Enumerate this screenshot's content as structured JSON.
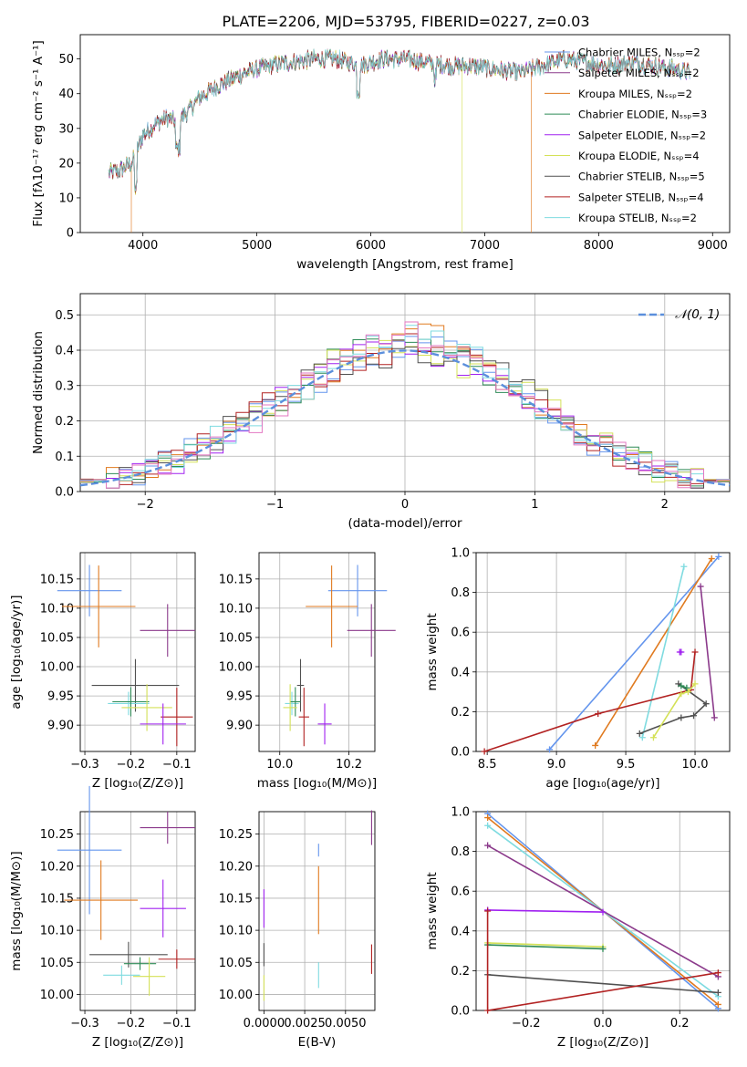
{
  "figure": {
    "title": "PLATE=2206, MJD=53795, FIBERID=0227, z=0.03"
  },
  "colors": {
    "Chabrier MILES": "#6495ed",
    "Salpeter MILES": "#8b3a8b",
    "Kroupa MILES": "#e07a1f",
    "Chabrier ELODIE": "#2e8b57",
    "Salpeter ELODIE": "#a020f0",
    "Kroupa ELODIE": "#d4e157",
    "Chabrier STELIB": "#505050",
    "Salpeter STELIB": "#b22222",
    "Kroupa STELIB": "#7fdbe0",
    "normal": "#5b8fdc",
    "pink": "#e377c2",
    "grid": "#b0b0b0"
  },
  "chart_data": [
    {
      "id": "spectrum",
      "type": "line",
      "title": "PLATE=2206, MJD=53795, FIBERID=0227, z=0.03",
      "xlabel": "wavelength [Angstrom, rest frame]",
      "ylabel": "Flux [fλ10⁻¹⁷ erg cm⁻² s⁻¹ A⁻¹]",
      "xlim": [
        3450,
        9150
      ],
      "ylim": [
        0,
        57
      ],
      "xticks": [
        4000,
        5000,
        6000,
        7000,
        8000,
        9000
      ],
      "yticks": [
        0,
        10,
        20,
        30,
        40,
        50
      ],
      "grid": false,
      "legend_position": "top-right",
      "legend": [
        "Chabrier MILES, Nₛₛₚ=2",
        "Salpeter MILES, Nₛₛₚ=2",
        "Kroupa MILES, Nₛₛₚ=2",
        "Chabrier ELODIE, Nₛₛₚ=3",
        "Salpeter ELODIE, Nₛₛₚ=2",
        "Kroupa ELODIE, Nₛₛₚ=4",
        "Chabrier STELIB, Nₛₛₚ=5",
        "Salpeter STELIB, Nₛₛₚ=4",
        "Kroupa STELIB, Nₛₛₚ=2"
      ],
      "continuum": {
        "x": [
          3700,
          3800,
          3900,
          4000,
          4100,
          4200,
          4300,
          4400,
          4500,
          4700,
          4900,
          5100,
          5300,
          5500,
          5700,
          5900,
          6100,
          6300,
          6500,
          6700,
          6900,
          7100,
          7300,
          7500,
          7700,
          7900,
          8100,
          8300,
          8500,
          8700,
          8800
        ],
        "y": [
          17,
          18,
          20,
          28,
          31,
          33,
          32,
          35,
          39,
          43,
          46,
          48,
          49,
          50,
          50,
          48,
          50,
          50,
          49,
          48,
          48,
          47,
          46,
          48,
          50,
          49,
          48,
          49,
          48,
          47,
          46
        ]
      },
      "drops": [
        {
          "x": 3900,
          "model": "Kroupa MILES"
        },
        {
          "x": 6800,
          "model": "Kroupa ELODIE"
        },
        {
          "x": 7410,
          "model": "Kroupa MILES"
        }
      ]
    },
    {
      "id": "residuals",
      "type": "line",
      "xlabel": "(data-model)/error",
      "ylabel": "Normed distribution",
      "xlim": [
        -2.5,
        2.5
      ],
      "ylim": [
        0,
        0.56
      ],
      "xticks": [
        -2,
        -1,
        0,
        1,
        2
      ],
      "yticks": [
        0.0,
        0.1,
        0.2,
        0.3,
        0.4,
        0.5
      ],
      "grid": true,
      "legend_position": "top-right",
      "legend": [
        "𝒩(0, 1)"
      ],
      "bin_width": 0.1
    },
    {
      "id": "age-vs-Z",
      "type": "scatter",
      "xlabel": "Z [log₁₀(Z/Z⊙)]",
      "ylabel": "age  [log₁₀(age/yr)]",
      "xlim": [
        -0.31,
        -0.06
      ],
      "ylim": [
        9.855,
        10.195
      ],
      "xticks": [
        -0.3,
        -0.2,
        -0.1
      ],
      "yticks": [
        9.9,
        9.95,
        10.0,
        10.05,
        10.1,
        10.15
      ],
      "grid": true,
      "points": [
        {
          "model": "Chabrier MILES",
          "x": -0.29,
          "y": 10.13,
          "xerr": 0.07,
          "yerr": 0.044
        },
        {
          "model": "Kroupa MILES",
          "x": -0.27,
          "y": 10.103,
          "xerr": 0.08,
          "yerr": 0.07
        },
        {
          "model": "Salpeter MILES",
          "x": -0.12,
          "y": 10.062,
          "xerr": 0.06,
          "yerr": 0.045
        },
        {
          "model": "Chabrier STELIB",
          "x": -0.19,
          "y": 9.968,
          "xerr": 0.095,
          "yerr": 0.045
        },
        {
          "model": "Kroupa STELIB",
          "x": -0.205,
          "y": 9.937,
          "xerr": 0.045,
          "yerr": 0.02
        },
        {
          "model": "Chabrier ELODIE",
          "x": -0.2,
          "y": 9.94,
          "xerr": 0.04,
          "yerr": 0.025
        },
        {
          "model": "Kroupa ELODIE",
          "x": -0.165,
          "y": 9.93,
          "xerr": 0.055,
          "yerr": 0.04
        },
        {
          "model": "Salpeter STELIB",
          "x": -0.1,
          "y": 9.914,
          "xerr": 0.035,
          "yerr": 0.05
        },
        {
          "model": "Salpeter ELODIE",
          "x": -0.13,
          "y": 9.902,
          "xerr": 0.05,
          "yerr": 0.035
        }
      ]
    },
    {
      "id": "age-vs-mass",
      "type": "scatter",
      "xlabel": "mass [log₁₀(M/M⊙)]",
      "ylabel": "",
      "xlim": [
        9.94,
        10.275
      ],
      "ylim": [
        9.855,
        10.195
      ],
      "xticks": [
        10.0,
        10.2
      ],
      "yticks": [
        9.9,
        9.95,
        10.0,
        10.05,
        10.1,
        10.15
      ],
      "grid": true,
      "points": [
        {
          "model": "Chabrier MILES",
          "x": 10.225,
          "y": 10.13,
          "xerr": 0.085,
          "yerr": 0.044
        },
        {
          "model": "Kroupa MILES",
          "x": 10.15,
          "y": 10.103,
          "xerr": 0.075,
          "yerr": 0.07
        },
        {
          "model": "Salpeter MILES",
          "x": 10.265,
          "y": 10.062,
          "xerr": 0.07,
          "yerr": 0.045
        },
        {
          "model": "Chabrier STELIB",
          "x": 10.06,
          "y": 9.968,
          "xerr": 0.01,
          "yerr": 0.045
        },
        {
          "model": "Kroupa STELIB",
          "x": 10.035,
          "y": 9.937,
          "xerr": 0.02,
          "yerr": 0.02
        },
        {
          "model": "Chabrier ELODIE",
          "x": 10.045,
          "y": 9.94,
          "xerr": 0.015,
          "yerr": 0.025
        },
        {
          "model": "Kroupa ELODIE",
          "x": 10.03,
          "y": 9.93,
          "xerr": 0.02,
          "yerr": 0.04
        },
        {
          "model": "Salpeter STELIB",
          "x": 10.07,
          "y": 9.914,
          "xerr": 0.015,
          "yerr": 0.05
        },
        {
          "model": "Salpeter ELODIE",
          "x": 10.13,
          "y": 9.902,
          "xerr": 0.02,
          "yerr": 0.035
        }
      ]
    },
    {
      "id": "weight-vs-age",
      "type": "line",
      "xlabel": "age  [log₁₀(age/yr)]",
      "ylabel": "mass weight",
      "xlim": [
        8.42,
        10.25
      ],
      "ylim": [
        0,
        1
      ],
      "xticks": [
        8.5,
        9.0,
        9.5,
        10.0
      ],
      "yticks": [
        0.0,
        0.2,
        0.4,
        0.6,
        0.8,
        1.0
      ],
      "grid": true,
      "series": [
        {
          "model": "Chabrier MILES",
          "x": [
            8.95,
            10.17
          ],
          "y": [
            0.01,
            0.98
          ]
        },
        {
          "model": "Kroupa MILES",
          "x": [
            9.28,
            10.12
          ],
          "y": [
            0.03,
            0.97
          ]
        },
        {
          "model": "Kroupa STELIB",
          "x": [
            9.62,
            9.92
          ],
          "y": [
            0.07,
            0.93
          ]
        },
        {
          "model": "Salpeter MILES",
          "x": [
            10.04,
            10.14
          ],
          "y": [
            0.83,
            0.17
          ]
        },
        {
          "model": "Salpeter STELIB",
          "x": [
            8.48,
            9.3,
            9.97,
            10.0
          ],
          "y": [
            0.0,
            0.19,
            0.31,
            0.5
          ]
        },
        {
          "model": "Chabrier STELIB",
          "x": [
            9.6,
            9.9,
            9.99,
            10.08,
            9.88
          ],
          "y": [
            0.09,
            0.17,
            0.18,
            0.24,
            0.34
          ]
        },
        {
          "model": "Kroupa ELODIE",
          "x": [
            9.7,
            9.9,
            9.95,
            10.0
          ],
          "y": [
            0.07,
            0.29,
            0.3,
            0.34
          ]
        },
        {
          "model": "Salpeter ELODIE",
          "x": [
            9.89,
            9.9
          ],
          "y": [
            0.5,
            0.5
          ]
        },
        {
          "model": "Chabrier ELODIE",
          "x": [
            9.9,
            9.94
          ],
          "y": [
            0.33,
            0.32
          ]
        }
      ]
    },
    {
      "id": "mass-vs-Z",
      "type": "scatter",
      "xlabel": "Z [log₁₀(Z/Z⊙)]",
      "ylabel": "mass [log₁₀(M/M⊙)]",
      "xlim": [
        -0.31,
        -0.06
      ],
      "ylim": [
        9.975,
        10.285
      ],
      "xticks": [
        -0.3,
        -0.2,
        -0.1
      ],
      "yticks": [
        10.0,
        10.05,
        10.1,
        10.15,
        10.2,
        10.25
      ],
      "grid": true,
      "points": [
        {
          "model": "Salpeter MILES",
          "x": -0.12,
          "y": 10.26,
          "xerr": 0.06,
          "yerr": 0.025
        },
        {
          "model": "Chabrier MILES",
          "x": -0.29,
          "y": 10.225,
          "xerr": 0.07,
          "yerr": 0.1
        },
        {
          "model": "Kroupa MILES",
          "x": -0.265,
          "y": 10.147,
          "xerr": 0.08,
          "yerr": 0.062
        },
        {
          "model": "Salpeter ELODIE",
          "x": -0.13,
          "y": 10.134,
          "xerr": 0.05,
          "yerr": 0.045
        },
        {
          "model": "Chabrier STELIB",
          "x": -0.205,
          "y": 10.062,
          "xerr": 0.085,
          "yerr": 0.02
        },
        {
          "model": "Salpeter STELIB",
          "x": -0.1,
          "y": 10.055,
          "xerr": 0.04,
          "yerr": 0.015
        },
        {
          "model": "Chabrier ELODIE",
          "x": -0.18,
          "y": 10.048,
          "xerr": 0.035,
          "yerr": 0.01
        },
        {
          "model": "Kroupa STELIB",
          "x": -0.22,
          "y": 10.03,
          "xerr": 0.04,
          "yerr": 0.015
        },
        {
          "model": "Kroupa ELODIE",
          "x": -0.16,
          "y": 10.028,
          "xerr": 0.035,
          "yerr": 0.03
        }
      ]
    },
    {
      "id": "mass-vs-EBV",
      "type": "scatter",
      "xlabel": "E(B-V)",
      "ylabel": "",
      "xlim": [
        -0.0003,
        0.0068
      ],
      "ylim": [
        9.975,
        10.285
      ],
      "xticks": [
        0.0,
        0.0025,
        0.005
      ],
      "xticklabels": [
        "0.0000",
        "0.0025",
        "0.0050"
      ],
      "yticks": [
        10.0,
        10.05,
        10.1,
        10.15,
        10.2,
        10.25
      ],
      "grid": true,
      "points": [
        {
          "model": "Salpeter MILES",
          "x": 0.0066,
          "y": 10.26,
          "xerr": 0,
          "yerr": 0.027
        },
        {
          "model": "Chabrier MILES",
          "x": 0.00335,
          "y": 10.225,
          "xerr": 0,
          "yerr": 0.01
        },
        {
          "model": "Kroupa MILES",
          "x": 0.00335,
          "y": 10.147,
          "xerr": 0,
          "yerr": 0.053
        },
        {
          "model": "Salpeter ELODIE",
          "x": 0.0,
          "y": 10.134,
          "xerr": 0,
          "yerr": 0.03
        },
        {
          "model": "Chabrier STELIB",
          "x": 0.0,
          "y": 10.062,
          "xerr": 0,
          "yerr": 0.018
        },
        {
          "model": "Salpeter STELIB",
          "x": 0.0066,
          "y": 10.055,
          "xerr": 0,
          "yerr": 0.023
        },
        {
          "model": "Kroupa STELIB",
          "x": 0.00335,
          "y": 10.03,
          "xerr": 0,
          "yerr": 0.02
        },
        {
          "model": "Kroupa ELODIE",
          "x": 0.0,
          "y": 10.01,
          "xerr": 0,
          "yerr": 0.02
        }
      ]
    },
    {
      "id": "weight-vs-Z",
      "type": "line",
      "xlabel": "Z [log₁₀(Z/Z⊙)]",
      "ylabel": "mass weight",
      "xlim": [
        -0.33,
        0.33
      ],
      "ylim": [
        0,
        1
      ],
      "xticks": [
        -0.2,
        0.0,
        0.2
      ],
      "yticks": [
        0.0,
        0.2,
        0.4,
        0.6,
        0.8,
        1.0
      ],
      "grid": true,
      "series": [
        {
          "model": "Chabrier MILES",
          "x": [
            -0.3,
            0.3
          ],
          "y": [
            0.99,
            0.01
          ]
        },
        {
          "model": "Kroupa MILES",
          "x": [
            -0.3,
            0.3
          ],
          "y": [
            0.97,
            0.03
          ]
        },
        {
          "model": "Kroupa STELIB",
          "x": [
            -0.3,
            0.3
          ],
          "y": [
            0.93,
            0.07
          ]
        },
        {
          "model": "Salpeter MILES",
          "x": [
            -0.3,
            0.3
          ],
          "y": [
            0.83,
            0.17
          ]
        },
        {
          "model": "Salpeter ELODIE",
          "x": [
            -0.3,
            0.0
          ],
          "y": [
            0.505,
            0.495
          ]
        },
        {
          "model": "Kroupa ELODIE",
          "x": [
            -0.3,
            0.0
          ],
          "y": [
            0.34,
            0.32
          ]
        },
        {
          "model": "Chabrier ELODIE",
          "x": [
            -0.3,
            0.0
          ],
          "y": [
            0.33,
            0.31
          ]
        },
        {
          "model": "Chabrier STELIB",
          "x": [
            -0.3,
            0.3
          ],
          "y": [
            0.18,
            0.09
          ]
        },
        {
          "model": "Salpeter STELIB",
          "x": [
            -0.3,
            -0.3,
            0.3
          ],
          "y": [
            0.5,
            0.0,
            0.19
          ]
        }
      ]
    }
  ]
}
